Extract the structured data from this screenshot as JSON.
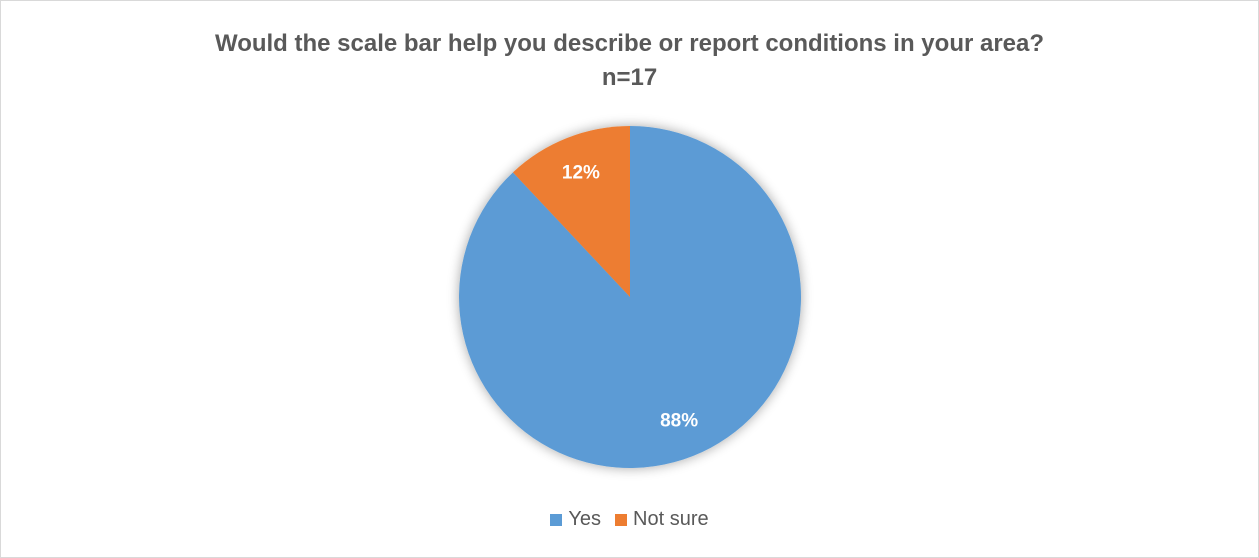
{
  "chart_data": {
    "type": "pie",
    "title": "Would the scale bar help you describe or report conditions in your area?",
    "subtitle": "n=17",
    "legend_position": "bottom",
    "slices": [
      {
        "label": "Yes",
        "value": 88,
        "display": "88%",
        "color": "#5b9bd5"
      },
      {
        "label": "Not sure",
        "value": 12,
        "display": "12%",
        "color": "#ed7d31"
      }
    ]
  }
}
